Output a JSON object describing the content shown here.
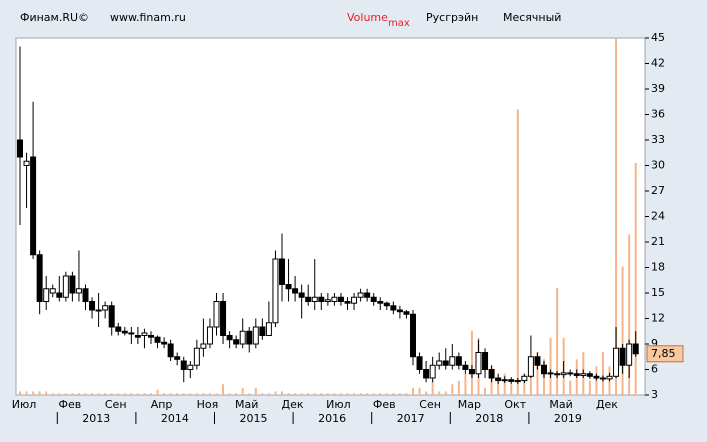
{
  "chart_data": {
    "type": "candlestick",
    "source": "Финам.RU©",
    "site": "www.finam.ru",
    "volume_label": "Volume",
    "max_label": "max",
    "title": "Русгрэйн",
    "period": "Месячный",
    "categories": [
      "Июл",
      null,
      null,
      null,
      null,
      null,
      null,
      "Фев",
      null,
      null,
      null,
      null,
      null,
      null,
      "Сен",
      null,
      null,
      null,
      null,
      null,
      null,
      "Апр",
      null,
      null,
      null,
      null,
      null,
      null,
      "Ноя",
      null,
      null,
      null,
      null,
      null,
      "Май",
      null,
      null,
      null,
      null,
      null,
      null,
      "Дек",
      null,
      null,
      null,
      null,
      null,
      null,
      "Июл",
      null,
      null,
      null,
      null,
      null,
      null,
      "Фев",
      null,
      null,
      null,
      null,
      null,
      null,
      "Сен",
      null,
      null,
      null,
      null,
      null,
      "Мар",
      null,
      null,
      null,
      null,
      null,
      null,
      "Окт",
      null,
      null,
      null,
      null,
      null,
      null,
      "Май",
      null,
      null,
      null,
      null,
      null,
      null,
      "Дек",
      null,
      null,
      null,
      null,
      null
    ],
    "years": [
      "2013",
      "2014",
      "2015",
      "2016",
      "2017",
      "2018",
      "2019"
    ],
    "open": [
      33,
      30,
      31,
      19.5,
      14,
      15,
      15,
      14.5,
      17,
      15,
      15.5,
      14,
      13,
      13,
      13.5,
      11,
      10.5,
      10.3,
      10,
      10,
      10,
      9.8,
      9.2,
      9,
      7.5,
      7,
      6,
      6.5,
      8.5,
      9,
      11,
      14,
      10,
      9.5,
      9,
      10.5,
      9,
      11,
      10,
      11.5,
      19,
      16,
      15.5,
      15,
      14.5,
      14,
      14.5,
      14,
      14,
      14.5,
      14,
      13.8,
      14.5,
      15,
      14.5,
      14,
      13.8,
      13.5,
      13,
      12.8,
      12.5,
      7.5,
      6,
      5,
      6.5,
      7,
      6.5,
      7.5,
      6.5,
      6,
      5.5,
      8,
      6,
      5,
      4.7,
      4.8,
      4.6,
      4.7,
      5.2,
      7.5,
      6.5,
      5.5,
      5.5,
      5.4,
      5.6,
      5.5,
      5.3,
      5.5,
      5.2,
      5,
      4.9,
      5.2,
      8.5,
      6.5,
      9
    ],
    "high": [
      44,
      31.5,
      37.5,
      20,
      17,
      16,
      17,
      17.5,
      17.5,
      20,
      16,
      14.5,
      15,
      14,
      14,
      11.5,
      11,
      11,
      11,
      10.8,
      10.5,
      10,
      9.8,
      9.5,
      8,
      7.5,
      7,
      9.5,
      12,
      12,
      15,
      15,
      10.5,
      10,
      12,
      11,
      12,
      12,
      14,
      20,
      22,
      19,
      17,
      16,
      16,
      19,
      15,
      15,
      15,
      15,
      14.5,
      15,
      15.5,
      15.5,
      15,
      14.5,
      14,
      14,
      13.5,
      13,
      13,
      8,
      7,
      7.5,
      8,
      8.5,
      9,
      8,
      7,
      6.5,
      9.5,
      8.5,
      6.5,
      5.5,
      5.2,
      5.1,
      5,
      5.5,
      10,
      8,
      7,
      6,
      5.8,
      7,
      6,
      6,
      6,
      5.8,
      5.5,
      5.3,
      5.6,
      11,
      9,
      9.5,
      10.5
    ],
    "low": [
      23,
      25,
      19,
      12.5,
      13,
      14.5,
      14,
      14,
      14,
      14,
      13,
      12,
      11,
      12,
      10,
      10,
      10,
      9,
      9,
      8.5,
      9,
      8.5,
      8.5,
      7,
      6.5,
      4.5,
      5,
      6,
      7.5,
      8.5,
      10,
      9,
      8.5,
      8.5,
      8.5,
      8,
      8.5,
      9.5,
      10,
      11,
      14,
      14,
      14,
      12,
      13.5,
      13,
      13,
      13.5,
      13.5,
      13.5,
      13,
      13,
      14,
      14,
      13.5,
      13,
      13,
      12.5,
      12,
      12,
      6.5,
      5.5,
      4.5,
      4.5,
      6,
      6,
      6,
      6,
      5.5,
      5,
      5,
      5,
      4.5,
      4.3,
      4.4,
      4.3,
      4.3,
      4.4,
      5,
      6,
      5,
      5,
      5,
      5,
      5.2,
      5,
      5,
      4.9,
      4.7,
      4.6,
      4.6,
      5,
      5.5,
      5,
      7.5
    ],
    "close": [
      31,
      30.5,
      19.5,
      14,
      15.5,
      15.5,
      14.5,
      17,
      15,
      15.5,
      14,
      13,
      13,
      13.5,
      11,
      10.5,
      10.3,
      10.2,
      9.8,
      10.3,
      9.8,
      9.2,
      9,
      7.5,
      7.2,
      6,
      6.5,
      8.5,
      9,
      11,
      14,
      10,
      9.5,
      9,
      10.5,
      9,
      11,
      10,
      11.5,
      19,
      16,
      15.5,
      15,
      14.5,
      14,
      14.5,
      14,
      14.2,
      14.5,
      14,
      13.8,
      14.5,
      15,
      14.5,
      14,
      13.8,
      13.5,
      13,
      12.8,
      12.5,
      7.5,
      6,
      5,
      6.5,
      7,
      6.5,
      7.5,
      6.5,
      6,
      5.5,
      8,
      6,
      5,
      4.7,
      4.8,
      4.6,
      4.7,
      5.2,
      7.5,
      6.5,
      5.5,
      5.6,
      5.4,
      5.6,
      5.5,
      5.3,
      5.5,
      5.2,
      5,
      4.9,
      5.2,
      8.5,
      6.5,
      9,
      7.85
    ],
    "volume": [
      1,
      1,
      1,
      1,
      1,
      0.5,
      0.5,
      0.5,
      0.5,
      0.5,
      0.5,
      0.5,
      0.5,
      0.5,
      0.5,
      0.5,
      0.5,
      0.5,
      0.5,
      0.5,
      0.5,
      1.5,
      0.5,
      0.5,
      0.5,
      0.5,
      0.5,
      0.5,
      0.5,
      0.5,
      0.5,
      3,
      0.5,
      0.5,
      2,
      0.5,
      2,
      0.5,
      0.5,
      1,
      1,
      0.5,
      0.5,
      0.5,
      0.5,
      0.5,
      0.5,
      0.5,
      0.5,
      0.5,
      0.5,
      0.5,
      0.5,
      0.5,
      0.5,
      0.5,
      0.5,
      0.5,
      0.5,
      0.5,
      2,
      2,
      1,
      4,
      1,
      1,
      3,
      4,
      6,
      18,
      16,
      2,
      8,
      4,
      6,
      3,
      80,
      6,
      10,
      12,
      10,
      16,
      30,
      16,
      4,
      10,
      12,
      4,
      8,
      12,
      8,
      100,
      36,
      45,
      65
    ],
    "last_price": {
      "value": 7.85,
      "label": "7,85"
    },
    "ylim": [
      3,
      45
    ],
    "yticks": [
      3,
      6,
      9,
      12,
      15,
      18,
      21,
      24,
      27,
      30,
      33,
      36,
      39,
      42,
      45
    ],
    "up_color": "#ffffff",
    "down_color": "#000000",
    "volume_color": "#f6b48c",
    "last_color": "#f8c8a0"
  }
}
